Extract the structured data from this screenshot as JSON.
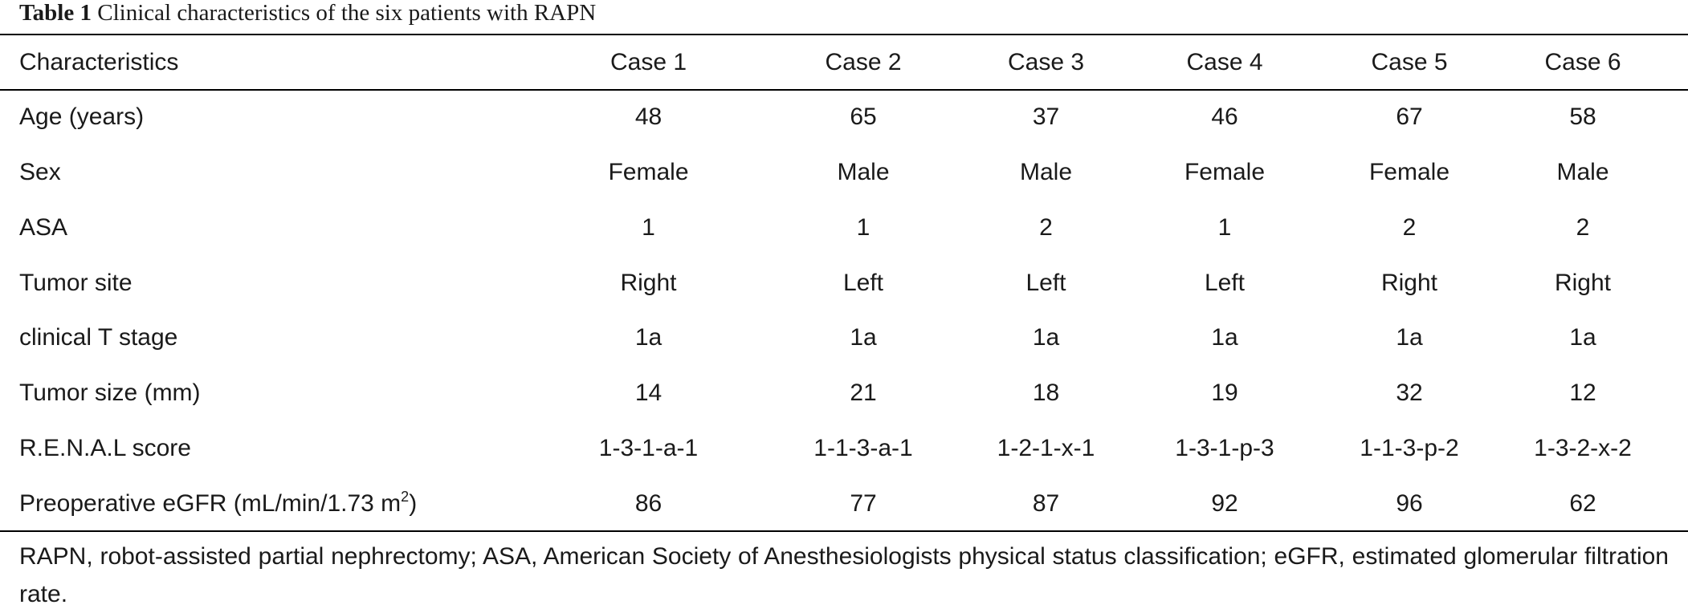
{
  "caption": {
    "label": "Table 1",
    "text": "Clinical characteristics of the six patients with RAPN"
  },
  "table": {
    "headers": [
      "Characteristics",
      "Case 1",
      "Case 2",
      "Case 3",
      "Case 4",
      "Case 5",
      "Case 6"
    ],
    "rows": [
      {
        "label": "Age (years)",
        "values": [
          "48",
          "65",
          "37",
          "46",
          "67",
          "58"
        ]
      },
      {
        "label": "Sex",
        "values": [
          "Female",
          "Male",
          "Male",
          "Female",
          "Female",
          "Male"
        ]
      },
      {
        "label": "ASA",
        "values": [
          "1",
          "1",
          "2",
          "1",
          "2",
          "2"
        ]
      },
      {
        "label": "Tumor site",
        "values": [
          "Right",
          "Left",
          "Left",
          "Left",
          "Right",
          "Right"
        ]
      },
      {
        "label": "clinical T stage",
        "values": [
          "1a",
          "1a",
          "1a",
          "1a",
          "1a",
          "1a"
        ]
      },
      {
        "label": "Tumor size (mm)",
        "values": [
          "14",
          "21",
          "18",
          "19",
          "32",
          "12"
        ]
      },
      {
        "label": "R.E.N.A.L score",
        "values": [
          "1-3-1-a-1",
          "1-1-3-a-1",
          "1-2-1-x-1",
          "1-3-1-p-3",
          "1-1-3-p-2",
          "1-3-2-x-2"
        ]
      },
      {
        "label": "Preoperative eGFR (mL/min/1.73 m",
        "label_sup": "2",
        "label_suffix": ")",
        "values": [
          "86",
          "77",
          "87",
          "92",
          "96",
          "62"
        ]
      }
    ]
  },
  "footnote": "RAPN, robot-assisted partial nephrectomy; ASA, American Society of Anesthesiologists physical status classification; eGFR, estimated glomerular filtration rate."
}
